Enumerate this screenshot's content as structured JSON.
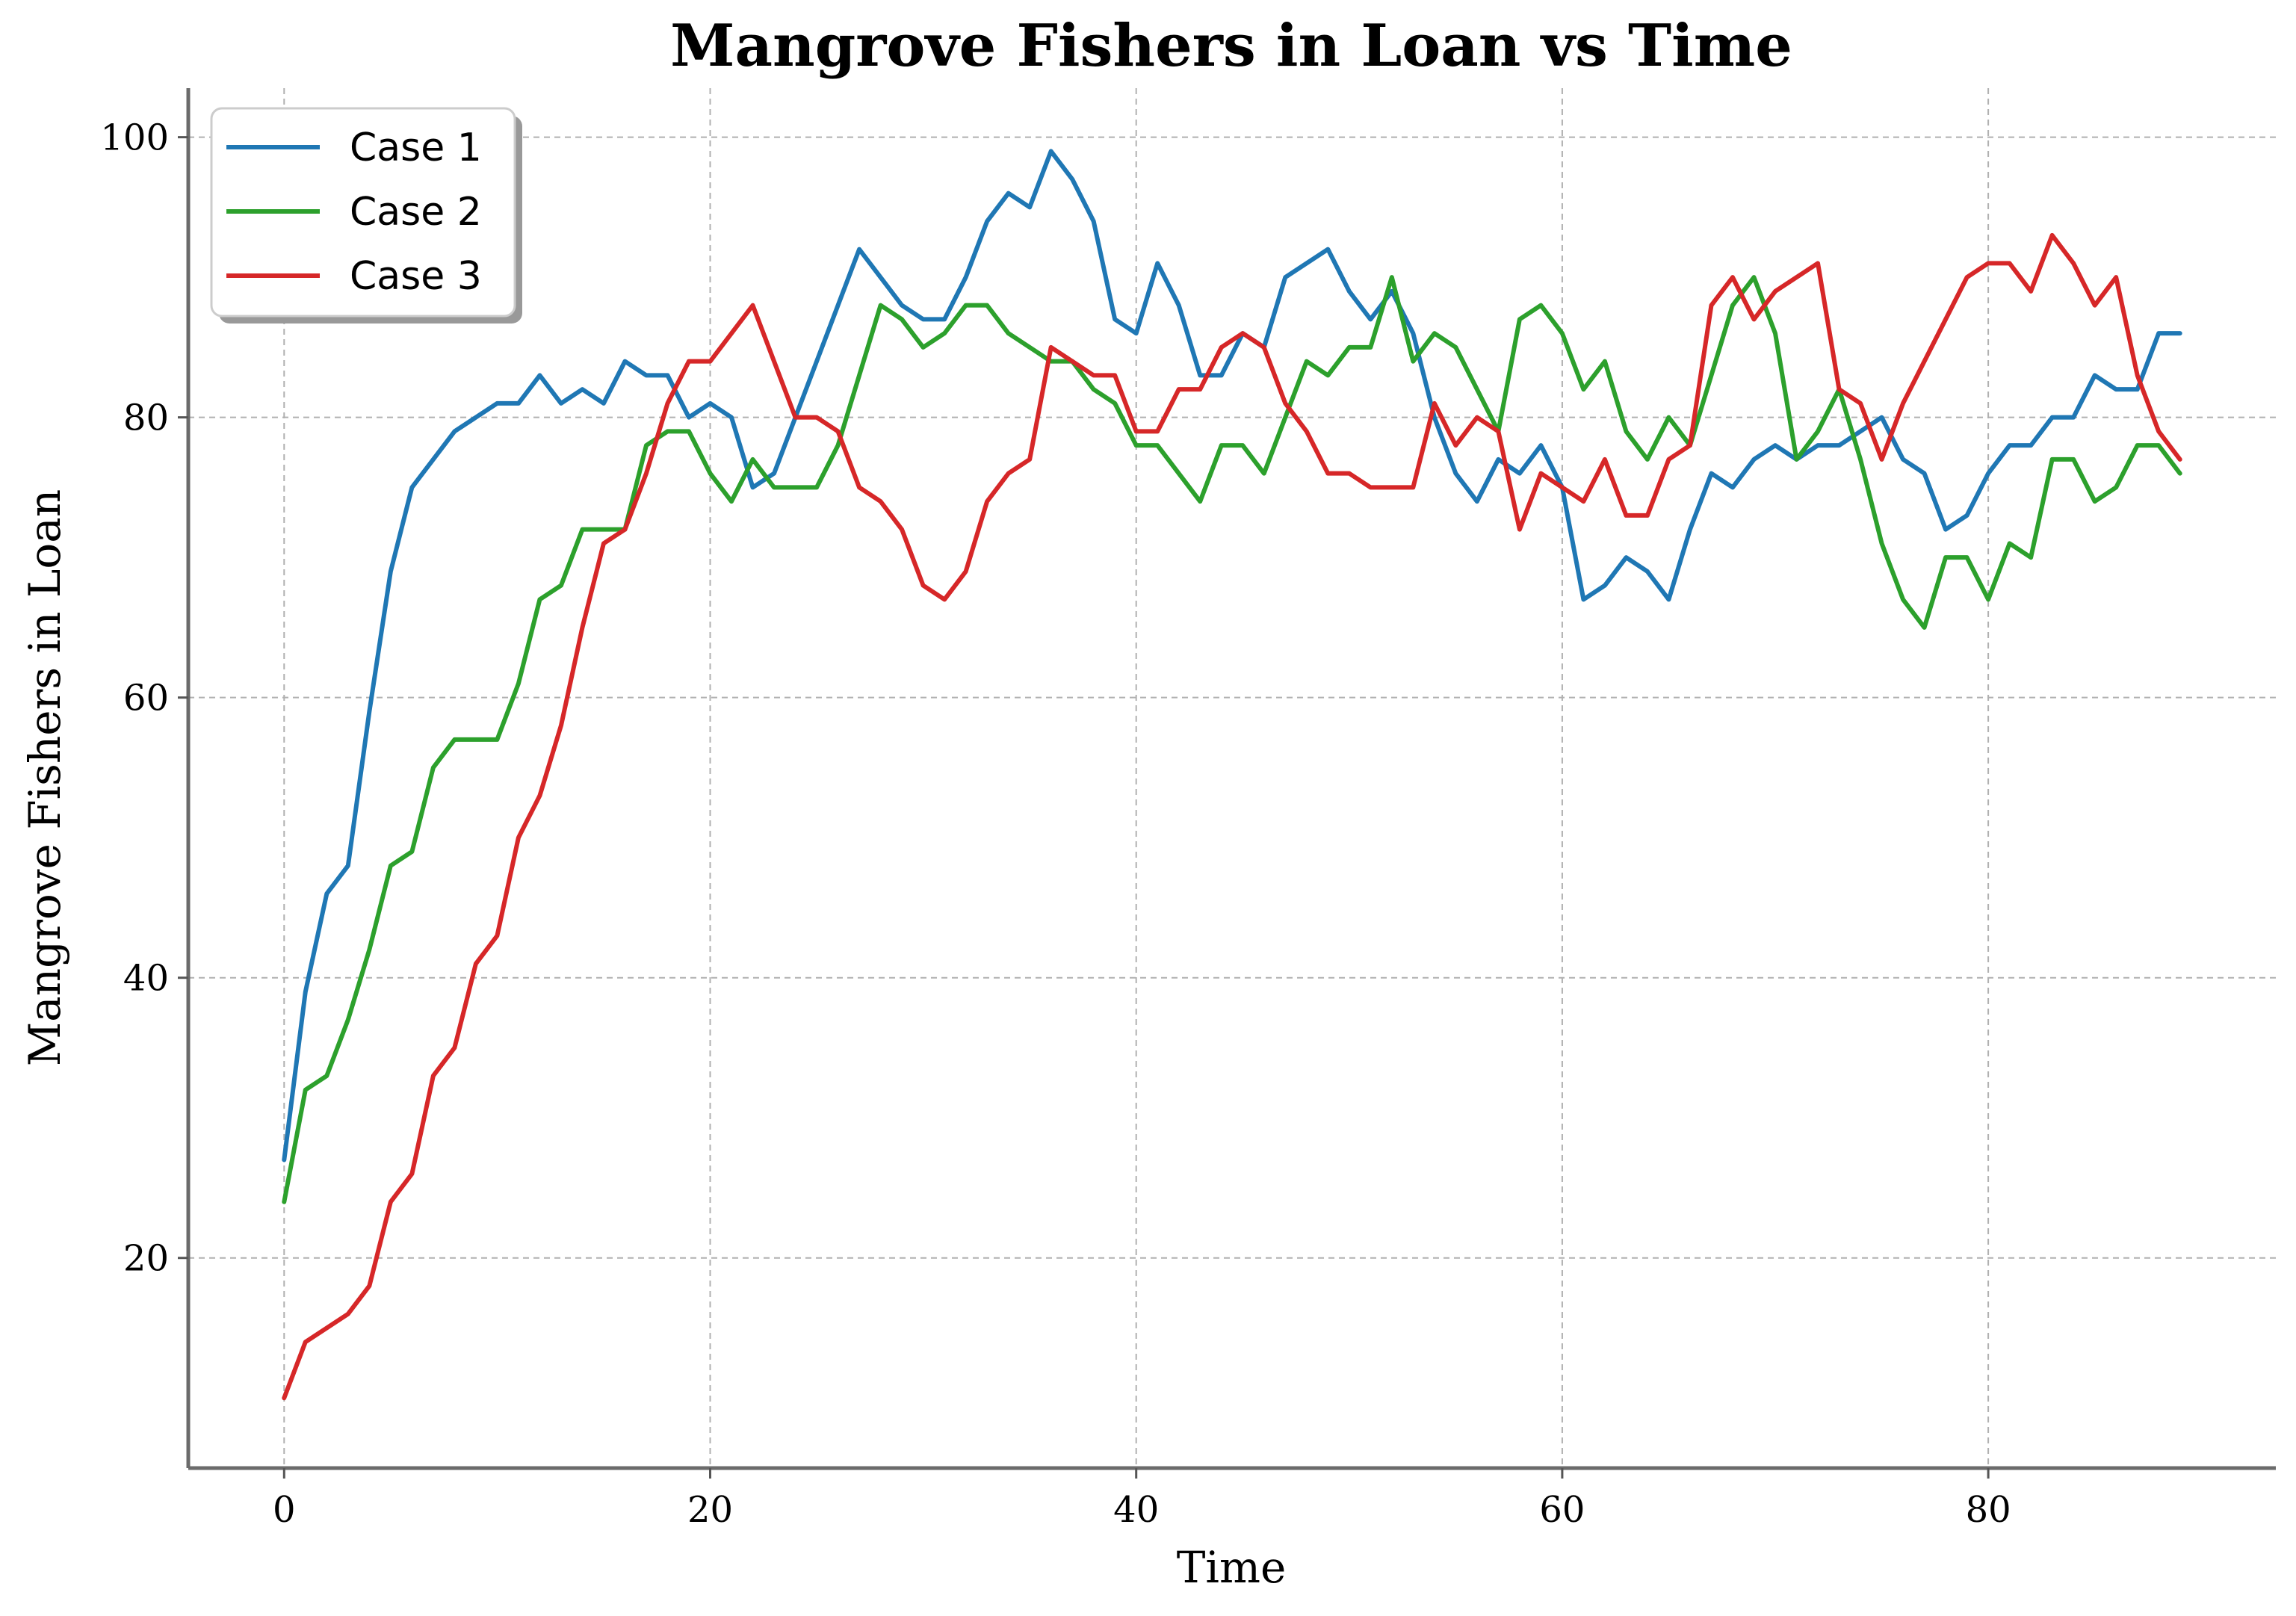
{
  "chart_data": {
    "type": "line",
    "title": "Mangrove Fishers in Loan vs Time",
    "xlabel": "Time",
    "ylabel": "Mangrove Fishers in Loan",
    "xlim": [
      -4.5,
      93.5
    ],
    "ylim": [
      5,
      103.5
    ],
    "xticks": [
      0,
      20,
      40,
      60,
      80
    ],
    "yticks": [
      20,
      40,
      60,
      80,
      100
    ],
    "grid": true,
    "legend_position": "top-left",
    "x": [
      0,
      1,
      2,
      3,
      4,
      5,
      6,
      7,
      8,
      9,
      10,
      11,
      12,
      13,
      14,
      15,
      16,
      17,
      18,
      19,
      20,
      21,
      22,
      23,
      24,
      25,
      26,
      27,
      28,
      29,
      30,
      31,
      32,
      33,
      34,
      35,
      36,
      37,
      38,
      39,
      40,
      41,
      42,
      43,
      44,
      45,
      46,
      47,
      48,
      49,
      50,
      51,
      52,
      53,
      54,
      55,
      56,
      57,
      58,
      59,
      60,
      61,
      62,
      63,
      64,
      65,
      66,
      67,
      68,
      69,
      70,
      71,
      72,
      73,
      74,
      75,
      76,
      77,
      78,
      79,
      80,
      81,
      82,
      83,
      84,
      85,
      86,
      87,
      88,
      89
    ],
    "series": [
      {
        "name": "Case 1",
        "color": "#1f77b4",
        "values": [
          27,
          39,
          46,
          48,
          59,
          69,
          75,
          77,
          79,
          80,
          81,
          81,
          83,
          81,
          82,
          81,
          84,
          83,
          83,
          80,
          81,
          80,
          75,
          76,
          80,
          84,
          88,
          92,
          90,
          88,
          87,
          87,
          90,
          94,
          96,
          95,
          99,
          97,
          94,
          87,
          86,
          91,
          88,
          83,
          83,
          86,
          85,
          90,
          91,
          92,
          89,
          87,
          89,
          86,
          80,
          76,
          74,
          77,
          76,
          78,
          75,
          67,
          68,
          70,
          69,
          67,
          72,
          76,
          75,
          77,
          78,
          77,
          78,
          78,
          79,
          80,
          77,
          76,
          72,
          73,
          76,
          78,
          78,
          80,
          80,
          83,
          82,
          82,
          86,
          86
        ]
      },
      {
        "name": "Case 2",
        "color": "#2ca02c",
        "values": [
          24,
          32,
          33,
          37,
          42,
          48,
          49,
          55,
          57,
          57,
          57,
          61,
          67,
          68,
          72,
          72,
          72,
          78,
          79,
          79,
          76,
          74,
          77,
          75,
          75,
          75,
          78,
          83,
          88,
          87,
          85,
          86,
          88,
          88,
          86,
          85,
          84,
          84,
          82,
          81,
          78,
          78,
          76,
          74,
          78,
          78,
          76,
          80,
          84,
          83,
          85,
          85,
          90,
          84,
          86,
          85,
          82,
          79,
          87,
          88,
          86,
          82,
          84,
          79,
          77,
          80,
          78,
          83,
          88,
          90,
          86,
          77,
          79,
          82,
          77,
          71,
          67,
          65,
          70,
          70,
          67,
          71,
          70,
          77,
          77,
          74,
          75,
          78,
          78,
          76
        ]
      },
      {
        "name": "Case 3",
        "color": "#d62728",
        "values": [
          10,
          14,
          15,
          16,
          18,
          24,
          26,
          33,
          35,
          41,
          43,
          50,
          53,
          58,
          65,
          71,
          72,
          76,
          81,
          84,
          84,
          86,
          88,
          84,
          80,
          80,
          79,
          75,
          74,
          72,
          68,
          67,
          69,
          74,
          76,
          77,
          85,
          84,
          83,
          83,
          79,
          79,
          82,
          82,
          85,
          86,
          85,
          81,
          79,
          76,
          76,
          75,
          75,
          75,
          81,
          78,
          80,
          79,
          72,
          76,
          75,
          74,
          77,
          73,
          73,
          77,
          78,
          88,
          90,
          87,
          89,
          90,
          91,
          82,
          81,
          77,
          81,
          84,
          87,
          90,
          91,
          91,
          89,
          93,
          91,
          88,
          90,
          83,
          79,
          77
        ]
      }
    ]
  }
}
